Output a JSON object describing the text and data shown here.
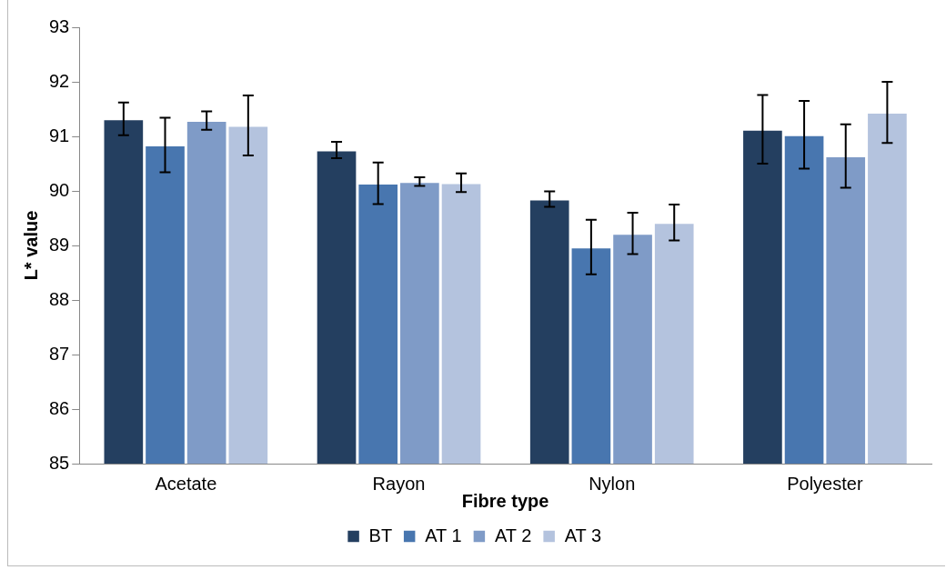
{
  "chart_data": {
    "type": "bar",
    "xlabel": "Fibre type",
    "ylabel": "L* value",
    "categories": [
      "Acetate",
      "Rayon",
      "Nylon",
      "Polyester"
    ],
    "series": [
      {
        "name": "BT",
        "color": "#243f60",
        "values": [
          91.32,
          90.75,
          89.85,
          91.13
        ],
        "errors": [
          0.3,
          0.15,
          0.14,
          0.63
        ]
      },
      {
        "name": "AT 1",
        "color": "#4876af",
        "values": [
          90.84,
          90.14,
          88.97,
          91.03
        ],
        "errors": [
          0.5,
          0.38,
          0.5,
          0.62
        ]
      },
      {
        "name": "AT 2",
        "color": "#7f9bc7",
        "values": [
          91.29,
          90.17,
          89.22,
          90.64
        ],
        "errors": [
          0.17,
          0.08,
          0.38,
          0.58
        ]
      },
      {
        "name": "AT 3",
        "color": "#b4c3de",
        "values": [
          91.2,
          90.15,
          89.42,
          91.44
        ],
        "errors": [
          0.55,
          0.17,
          0.33,
          0.56
        ]
      }
    ],
    "ylim": [
      85,
      93
    ],
    "yticks": [
      85,
      86,
      87,
      88,
      89,
      90,
      91,
      92,
      93
    ],
    "grid": false,
    "legend": "bottom"
  }
}
